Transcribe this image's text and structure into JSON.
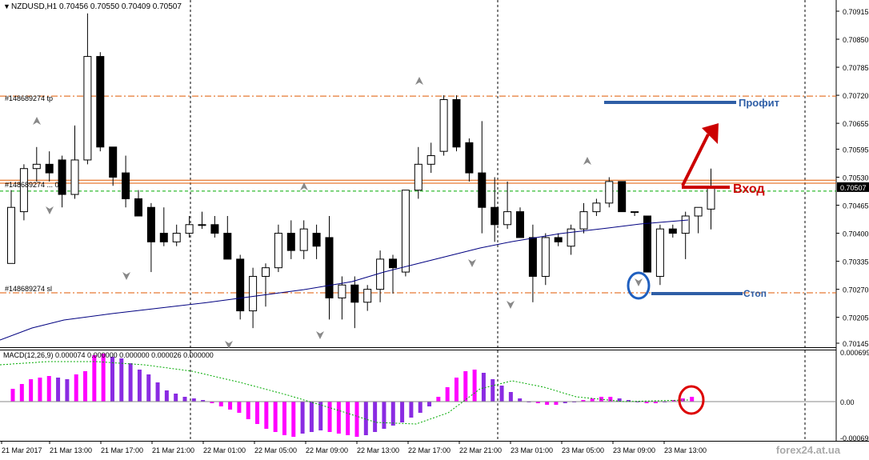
{
  "header": {
    "symbol_line": "NZDUSD,H1  0.70456 0.70550 0.70409 0.70507"
  },
  "price_axis": {
    "ticks": [
      "0.70915",
      "0.70850",
      "0.70785",
      "0.70720",
      "0.70655",
      "0.70595",
      "0.70530",
      "0.70465",
      "0.70400",
      "0.70335",
      "0.70270",
      "0.70205",
      "0.70145"
    ],
    "current_price": "0.70507",
    "current_price_color": "#000000"
  },
  "order_lines": {
    "tp_label": "#148689274 tp",
    "entry_label": "#148689274 ... 02",
    "sl_label": "#148689274 sl",
    "tp_price": 0.70718,
    "entry_price": 0.70523,
    "entry_price2": 0.70516,
    "sl_price": 0.70262,
    "bid_price": 0.70507
  },
  "annotations": {
    "profit": "Профит",
    "entry": "Вход",
    "stop": "Стоп",
    "profit_color": "#2e5ea6",
    "entry_color": "#cc0000",
    "stop_color": "#2e5ea6"
  },
  "macd": {
    "label": "MACD(12,26,9) 0.000074 0.000000 0.000000 0.000026 0.000000",
    "ticks": [
      "0.000699",
      "0.00",
      "-0.000699"
    ]
  },
  "time_axis": {
    "labels": [
      "21 Mar 2017",
      "21 Mar 13:00",
      "21 Mar 17:00",
      "21 Mar 21:00",
      "22 Mar 01:00",
      "22 Mar 05:00",
      "22 Mar 09:00",
      "22 Mar 13:00",
      "22 Mar 17:00",
      "22 Mar 21:00",
      "23 Mar 01:00",
      "23 Mar 05:00",
      "23 Mar 09:00",
      "23 Mar 13:00"
    ]
  },
  "watermark": "forex24.at.ua",
  "colors": {
    "bull": "#ffffff",
    "bear": "#000000",
    "ma_line": "#000080",
    "macd_magenta": "#ff00ff",
    "macd_purple": "#8a2be2",
    "signal_line": "#00aa00",
    "order_line": "#e05a00"
  },
  "chart_data": {
    "type": "candlestick",
    "symbol": "NZDUSD",
    "timeframe": "H1",
    "candles": [
      {
        "o": 0.7033,
        "h": 0.705,
        "l": 0.7033,
        "c": 0.7046
      },
      {
        "o": 0.7045,
        "h": 0.7056,
        "l": 0.7043,
        "c": 0.7055
      },
      {
        "o": 0.7055,
        "h": 0.706,
        "l": 0.7052,
        "c": 0.7056
      },
      {
        "o": 0.7056,
        "h": 0.7059,
        "l": 0.7052,
        "c": 0.7054
      },
      {
        "o": 0.7057,
        "h": 0.7058,
        "l": 0.7046,
        "c": 0.7049
      },
      {
        "o": 0.7049,
        "h": 0.7065,
        "l": 0.7048,
        "c": 0.7057
      },
      {
        "o": 0.7057,
        "h": 0.7091,
        "l": 0.7056,
        "c": 0.7081
      },
      {
        "o": 0.7081,
        "h": 0.7082,
        "l": 0.7059,
        "c": 0.706
      },
      {
        "o": 0.706,
        "h": 0.706,
        "l": 0.7051,
        "c": 0.7053
      },
      {
        "o": 0.7054,
        "h": 0.7058,
        "l": 0.7046,
        "c": 0.7048
      },
      {
        "o": 0.7048,
        "h": 0.705,
        "l": 0.7044,
        "c": 0.7044
      },
      {
        "o": 0.7046,
        "h": 0.7047,
        "l": 0.7031,
        "c": 0.7038
      },
      {
        "o": 0.704,
        "h": 0.7046,
        "l": 0.7037,
        "c": 0.7038
      },
      {
        "o": 0.7038,
        "h": 0.7042,
        "l": 0.7037,
        "c": 0.704
      },
      {
        "o": 0.704,
        "h": 0.7044,
        "l": 0.7039,
        "c": 0.7042
      },
      {
        "o": 0.7042,
        "h": 0.7045,
        "l": 0.7041,
        "c": 0.7042
      },
      {
        "o": 0.7042,
        "h": 0.7044,
        "l": 0.7039,
        "c": 0.704
      },
      {
        "o": 0.704,
        "h": 0.7044,
        "l": 0.7034,
        "c": 0.7034
      },
      {
        "o": 0.7034,
        "h": 0.7035,
        "l": 0.702,
        "c": 0.7022
      },
      {
        "o": 0.7022,
        "h": 0.7032,
        "l": 0.7018,
        "c": 0.703
      },
      {
        "o": 0.703,
        "h": 0.7033,
        "l": 0.7023,
        "c": 0.7032
      },
      {
        "o": 0.7032,
        "h": 0.7042,
        "l": 0.7031,
        "c": 0.704
      },
      {
        "o": 0.704,
        "h": 0.7043,
        "l": 0.7034,
        "c": 0.7036
      },
      {
        "o": 0.7036,
        "h": 0.7043,
        "l": 0.7034,
        "c": 0.7041
      },
      {
        "o": 0.704,
        "h": 0.7042,
        "l": 0.7034,
        "c": 0.7037
      },
      {
        "o": 0.7039,
        "h": 0.7044,
        "l": 0.702,
        "c": 0.7025
      },
      {
        "o": 0.7025,
        "h": 0.703,
        "l": 0.702,
        "c": 0.7028
      },
      {
        "o": 0.7028,
        "h": 0.703,
        "l": 0.7018,
        "c": 0.7024
      },
      {
        "o": 0.7024,
        "h": 0.7028,
        "l": 0.7022,
        "c": 0.7027
      },
      {
        "o": 0.7027,
        "h": 0.7036,
        "l": 0.7024,
        "c": 0.7034
      },
      {
        "o": 0.7034,
        "h": 0.7035,
        "l": 0.7026,
        "c": 0.7032
      },
      {
        "o": 0.7031,
        "h": 0.705,
        "l": 0.703,
        "c": 0.705
      },
      {
        "o": 0.705,
        "h": 0.706,
        "l": 0.7048,
        "c": 0.7056
      },
      {
        "o": 0.7056,
        "h": 0.7061,
        "l": 0.7054,
        "c": 0.7058
      },
      {
        "o": 0.7059,
        "h": 0.7072,
        "l": 0.7058,
        "c": 0.7071
      },
      {
        "o": 0.7071,
        "h": 0.7072,
        "l": 0.7059,
        "c": 0.706
      },
      {
        "o": 0.7061,
        "h": 0.7062,
        "l": 0.7052,
        "c": 0.7054
      },
      {
        "o": 0.7054,
        "h": 0.7066,
        "l": 0.704,
        "c": 0.7046
      },
      {
        "o": 0.7046,
        "h": 0.7053,
        "l": 0.7038,
        "c": 0.7042
      },
      {
        "o": 0.7042,
        "h": 0.7052,
        "l": 0.7041,
        "c": 0.7045
      },
      {
        "o": 0.7045,
        "h": 0.7046,
        "l": 0.7039,
        "c": 0.7039
      },
      {
        "o": 0.7039,
        "h": 0.7042,
        "l": 0.7024,
        "c": 0.703
      },
      {
        "o": 0.703,
        "h": 0.704,
        "l": 0.7028,
        "c": 0.7039
      },
      {
        "o": 0.7039,
        "h": 0.704,
        "l": 0.7037,
        "c": 0.7038
      },
      {
        "o": 0.7037,
        "h": 0.7042,
        "l": 0.7035,
        "c": 0.7041
      },
      {
        "o": 0.7041,
        "h": 0.7047,
        "l": 0.704,
        "c": 0.7045
      },
      {
        "o": 0.7045,
        "h": 0.7048,
        "l": 0.7044,
        "c": 0.7047
      },
      {
        "o": 0.7047,
        "h": 0.7053,
        "l": 0.7046,
        "c": 0.7052
      },
      {
        "o": 0.7052,
        "h": 0.7052,
        "l": 0.7045,
        "c": 0.7045
      },
      {
        "o": 0.7045,
        "h": 0.7045,
        "l": 0.7044,
        "c": 0.7045
      },
      {
        "o": 0.7044,
        "h": 0.7044,
        "l": 0.7031,
        "c": 0.7031
      },
      {
        "o": 0.703,
        "h": 0.7042,
        "l": 0.7028,
        "c": 0.7041
      },
      {
        "o": 0.7041,
        "h": 0.7042,
        "l": 0.7039,
        "c": 0.704
      },
      {
        "o": 0.704,
        "h": 0.7045,
        "l": 0.7034,
        "c": 0.7044
      },
      {
        "o": 0.7044,
        "h": 0.7046,
        "l": 0.704,
        "c": 0.7046
      },
      {
        "o": 0.70456,
        "h": 0.7055,
        "l": 0.70409,
        "c": 0.70507
      }
    ]
  }
}
